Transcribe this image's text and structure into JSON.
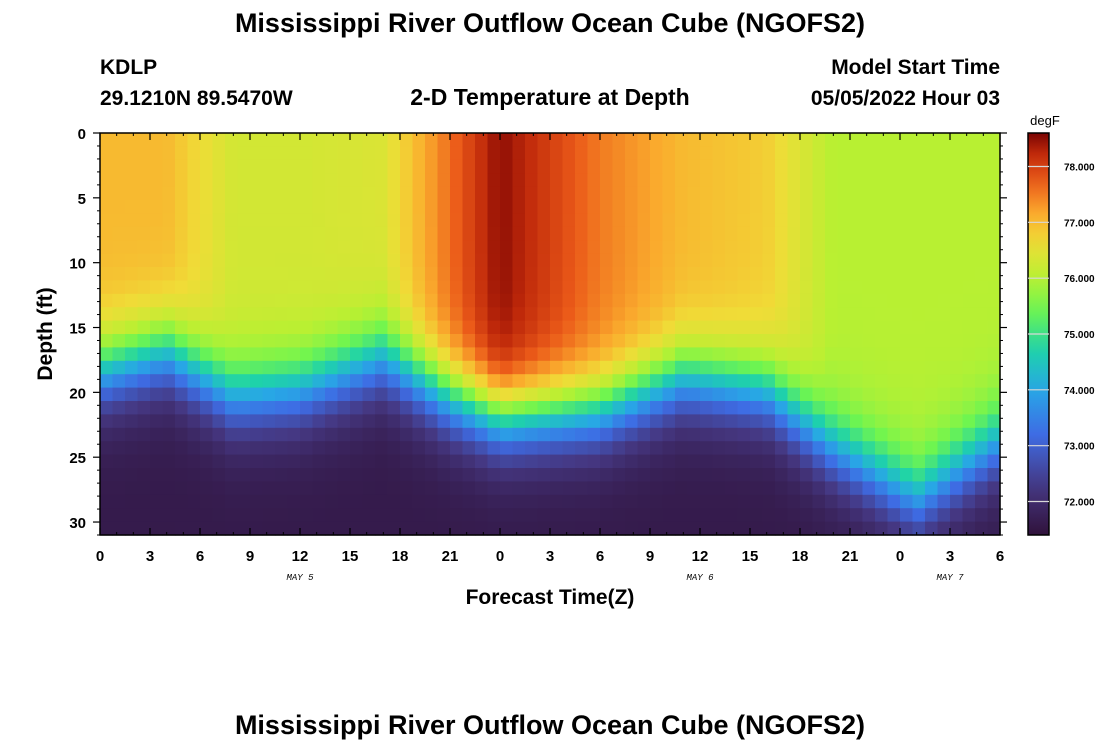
{
  "title": "Mississippi River Outflow Ocean Cube (NGOFS2)",
  "station": {
    "name": "KDLP",
    "coords": "29.1210N  89.5470W"
  },
  "subtitle": "2-D Temperature at Depth",
  "model_start": {
    "label": "Model Start Time",
    "value": "05/05/2022 Hour 03"
  },
  "footer_title": "Mississippi River Outflow Ocean Cube (NGOFS2)",
  "chart_data": {
    "type": "heatmap",
    "title": "2-D Temperature at Depth",
    "xlabel": "Forecast Time(Z)",
    "ylabel": "Depth (ft)",
    "x_hours_range": [
      0,
      54
    ],
    "x_tick_hours": [
      0,
      3,
      6,
      9,
      12,
      15,
      18,
      21,
      24,
      27,
      30,
      33,
      36,
      39,
      42,
      45,
      48,
      51,
      54
    ],
    "x_tick_labels": [
      "0",
      "3",
      "6",
      "9",
      "12",
      "15",
      "18",
      "21",
      "0",
      "3",
      "6",
      "9",
      "12",
      "15",
      "18",
      "21",
      "0",
      "3",
      "6"
    ],
    "date_labels": [
      {
        "hour": 12,
        "text": "MAY 5"
      },
      {
        "hour": 36,
        "text": "MAY 6"
      },
      {
        "hour": 51,
        "text": "MAY 7"
      }
    ],
    "y_range": [
      0,
      31
    ],
    "y_ticks": [
      0,
      5,
      10,
      15,
      20,
      25,
      30
    ],
    "y_tick_labels": [
      "0",
      "5",
      "10",
      "15",
      "20",
      "25",
      "30"
    ],
    "colorbar": {
      "units": "degF",
      "range": [
        71.4,
        78.6
      ],
      "ticks": [
        72.0,
        73.0,
        74.0,
        75.0,
        76.0,
        77.0,
        78.0
      ],
      "tick_labels": [
        "72.000",
        "73.000",
        "74.000",
        "75.000",
        "76.000",
        "77.000",
        "78.000"
      ]
    },
    "grid": false,
    "approx_profiles": [
      {
        "hour": 0,
        "surface_degF": 77.0,
        "thermocline_ft": 18.5
      },
      {
        "hour": 4,
        "surface_degF": 77.0,
        "thermocline_ft": 17.0
      },
      {
        "hour": 8,
        "surface_degF": 76.3,
        "thermocline_ft": 20.5
      },
      {
        "hour": 12,
        "surface_degF": 76.3,
        "thermocline_ft": 20.0
      },
      {
        "hour": 17,
        "surface_degF": 76.4,
        "thermocline_ft": 17.5
      },
      {
        "hour": 21,
        "surface_degF": 77.6,
        "thermocline_ft": 20.5
      },
      {
        "hour": 24,
        "surface_degF": 78.5,
        "thermocline_ft": 22.0
      },
      {
        "hour": 30,
        "surface_degF": 77.5,
        "thermocline_ft": 21.5
      },
      {
        "hour": 35,
        "surface_degF": 77.0,
        "thermocline_ft": 19.0
      },
      {
        "hour": 40,
        "surface_degF": 76.8,
        "thermocline_ft": 20.0
      },
      {
        "hour": 44,
        "surface_degF": 76.0,
        "thermocline_ft": 24.5
      },
      {
        "hour": 49,
        "surface_degF": 76.0,
        "thermocline_ft": 28.5
      },
      {
        "hour": 54,
        "surface_degF": 76.0,
        "thermocline_ft": 24.0
      }
    ]
  }
}
